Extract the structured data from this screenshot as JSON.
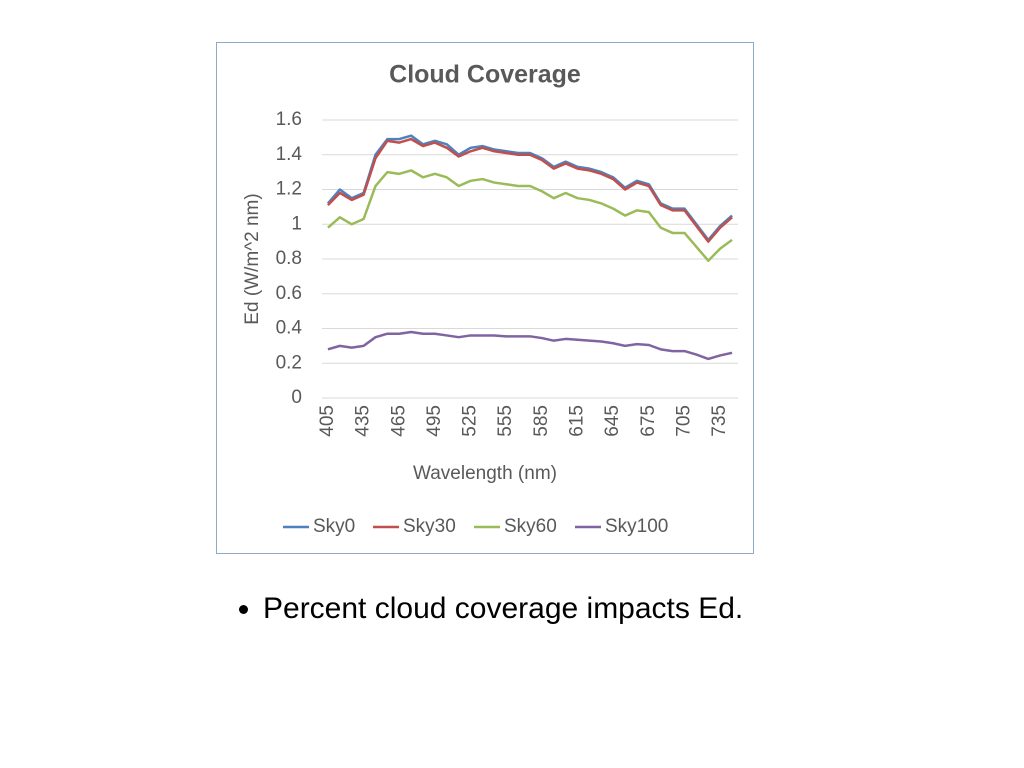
{
  "chart_data": {
    "type": "line",
    "title": "Cloud Coverage",
    "x_label": "Wavelength (nm)",
    "y_label": "Ed (W/m^2 nm)",
    "categories": [
      405,
      null,
      null,
      435,
      null,
      null,
      465,
      null,
      null,
      495,
      null,
      null,
      525,
      null,
      null,
      555,
      null,
      null,
      585,
      null,
      null,
      615,
      null,
      null,
      645,
      null,
      null,
      675,
      null,
      null,
      705,
      null,
      null,
      735,
      null
    ],
    "series": [
      {
        "name": "Sky0",
        "color": "#4f81bd",
        "values": [
          1.12,
          1.2,
          1.15,
          1.18,
          1.4,
          1.49,
          1.49,
          1.51,
          1.46,
          1.48,
          1.46,
          1.4,
          1.44,
          1.45,
          1.43,
          1.42,
          1.41,
          1.41,
          1.38,
          1.33,
          1.36,
          1.33,
          1.32,
          1.3,
          1.27,
          1.21,
          1.25,
          1.23,
          1.12,
          1.09,
          1.09,
          1.0,
          0.91,
          0.99,
          1.05
        ]
      },
      {
        "name": "Sky30",
        "color": "#c0504d",
        "values": [
          1.11,
          1.18,
          1.14,
          1.17,
          1.38,
          1.48,
          1.47,
          1.49,
          1.45,
          1.47,
          1.44,
          1.39,
          1.42,
          1.44,
          1.42,
          1.41,
          1.4,
          1.4,
          1.37,
          1.32,
          1.35,
          1.32,
          1.31,
          1.29,
          1.26,
          1.2,
          1.24,
          1.22,
          1.11,
          1.08,
          1.08,
          0.99,
          0.9,
          0.98,
          1.04
        ]
      },
      {
        "name": "Sky60",
        "color": "#9bbb59",
        "values": [
          0.98,
          1.04,
          1.0,
          1.03,
          1.22,
          1.3,
          1.29,
          1.31,
          1.27,
          1.29,
          1.27,
          1.22,
          1.25,
          1.26,
          1.24,
          1.23,
          1.22,
          1.22,
          1.19,
          1.15,
          1.18,
          1.15,
          1.14,
          1.12,
          1.09,
          1.05,
          1.08,
          1.07,
          0.98,
          0.95,
          0.95,
          0.87,
          0.79,
          0.86,
          0.91
        ]
      },
      {
        "name": "Sky100",
        "color": "#8064a2",
        "values": [
          0.28,
          0.3,
          0.29,
          0.3,
          0.35,
          0.37,
          0.37,
          0.38,
          0.37,
          0.37,
          0.36,
          0.35,
          0.36,
          0.36,
          0.36,
          0.355,
          0.355,
          0.355,
          0.345,
          0.33,
          0.34,
          0.335,
          0.33,
          0.325,
          0.315,
          0.3,
          0.31,
          0.305,
          0.28,
          0.27,
          0.27,
          0.25,
          0.225,
          0.245,
          0.26
        ]
      }
    ],
    "ylim": [
      0,
      1.6
    ],
    "yticks": [
      0,
      0.2,
      0.4,
      0.6,
      0.8,
      1,
      1.2,
      1.4,
      1.6
    ],
    "grid": true,
    "legend": "bottom"
  },
  "bullets": [
    "Percent cloud coverage impacts Ed."
  ]
}
